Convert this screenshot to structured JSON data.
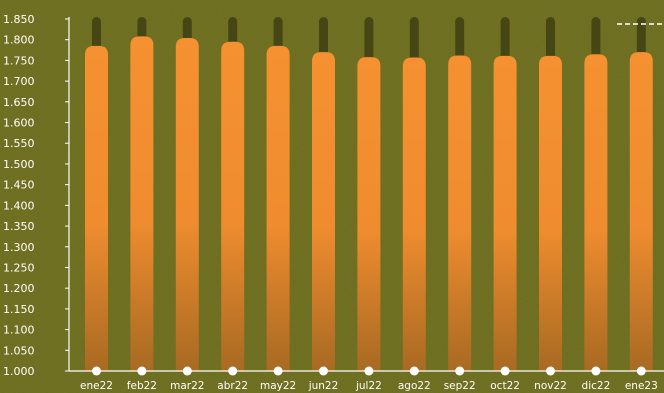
{
  "chart_data": {
    "type": "bar",
    "categories": [
      "ene22",
      "feb22",
      "mar22",
      "abr22",
      "may22",
      "jun22",
      "jul22",
      "ago22",
      "sep22",
      "oct22",
      "nov22",
      "dic22",
      "ene23"
    ],
    "values": [
      1785,
      1808,
      1804,
      1795,
      1785,
      1770,
      1758,
      1757,
      1762,
      1761,
      1761,
      1765,
      1770
    ],
    "y_ticks": [
      "1.000",
      "1.050",
      "1.100",
      "1.150",
      "1.200",
      "1.250",
      "1.300",
      "1.350",
      "1.400",
      "1.450",
      "1.500",
      "1.550",
      "1.600",
      "1.650",
      "1.700",
      "1.750",
      "1.800",
      "1.850"
    ],
    "ylim": [
      1000,
      1850
    ],
    "title": "",
    "xlabel": "",
    "ylabel": "",
    "grid": false,
    "colors": {
      "background": "#6b6b1e",
      "bar_top": "#f59130",
      "bar_bottom": "#a86a22",
      "track": "#3f4013",
      "axis": "#ffffff",
      "dashed_line": "#ffffff"
    }
  }
}
